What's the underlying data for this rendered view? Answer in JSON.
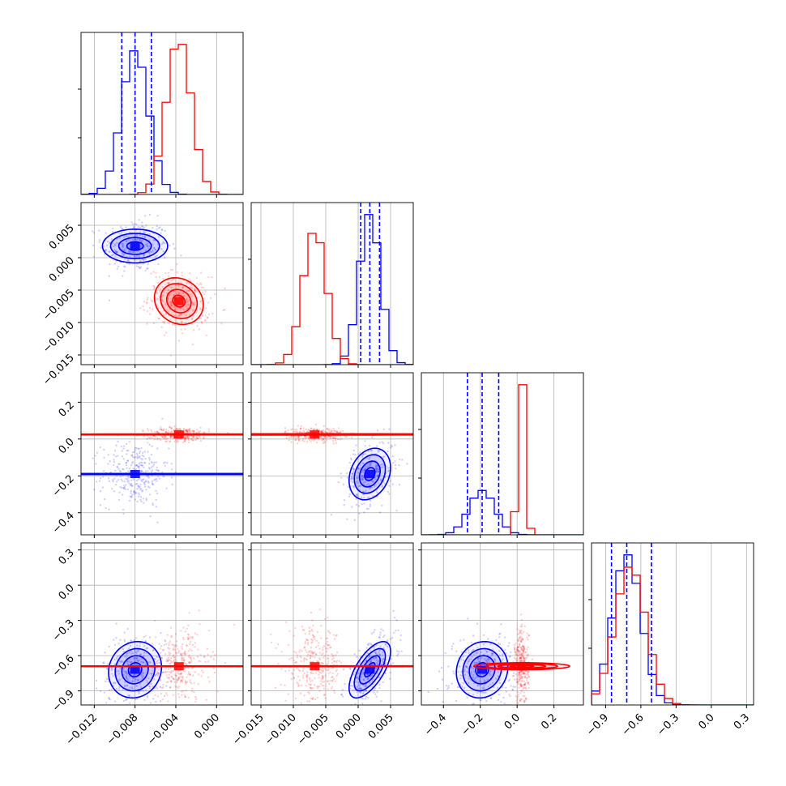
{
  "figure": {
    "type": "corner-plot"
  },
  "chart_data": {
    "type": "corner",
    "parameters": 4,
    "colors": {
      "series_a": "#0000ff",
      "series_b": "#ff0000",
      "grid": "#b0b0b0"
    },
    "grid": true,
    "series": [
      {
        "color": "#0000ff",
        "means": [
          -0.008,
          0.0018,
          -0.19,
          -0.72
        ],
        "sds": [
          0.0013,
          0.0016,
          0.07,
          0.12
        ],
        "corr": {
          "3-0": 0.1,
          "3-1": 0.65,
          "3-2": 0.1,
          "2-1": 0.25,
          "2-0": 0.0,
          "1-0": 0.0
        },
        "quantiles": [
          [
            -0.0093,
            -0.008,
            -0.0064
          ],
          [
            0.0004,
            0.0018,
            0.0033
          ],
          [
            -0.27,
            -0.19,
            -0.1
          ],
          [
            -0.85,
            -0.72,
            -0.51
          ]
        ]
      },
      {
        "color": "#ff0000",
        "means": [
          -0.0037,
          -0.0067,
          0.025,
          -0.69
        ],
        "sds": [
          0.0012,
          0.0018,
          0.015,
          0.13
        ],
        "corr": {
          "3-0": 0.0,
          "3-1": 0.0,
          "3-2": 0.0,
          "2-1": 0.0,
          "2-0": 0.0,
          "1-0": -0.15
        },
        "quantiles": null
      }
    ],
    "x_axes": [
      {
        "min": -0.0133,
        "max": 0.0026,
        "ticks": [
          -0.012,
          -0.008,
          -0.004,
          0.0
        ],
        "labels": [
          "−0.012",
          "−0.008",
          "−0.004",
          "0.000"
        ]
      },
      {
        "min": -0.0165,
        "max": 0.0085,
        "ticks": [
          -0.015,
          -0.01,
          -0.005,
          0.0,
          0.005
        ],
        "labels": [
          "−0.015",
          "−0.010",
          "−0.005",
          "0.000",
          "0.005"
        ]
      },
      {
        "min": -0.52,
        "max": 0.36,
        "ticks": [
          -0.4,
          -0.2,
          0.0,
          0.2
        ],
        "labels": [
          "−0.4",
          "−0.2",
          "0.0",
          "0.2"
        ]
      },
      {
        "min": -1.02,
        "max": 0.36,
        "ticks": [
          -0.9,
          -0.6,
          -0.3,
          0.0,
          0.3
        ],
        "labels": [
          "−0.9",
          "−0.6",
          "−0.3",
          "0.0",
          "0.3"
        ]
      }
    ],
    "y_axes": [
      null,
      {
        "min": -0.0165,
        "max": 0.0085,
        "ticks": [
          -0.015,
          -0.01,
          -0.005,
          0.0,
          0.005
        ],
        "labels": [
          "−0.015",
          "−0.010",
          "−0.005",
          "0.000",
          "0.005"
        ]
      },
      {
        "min": -0.52,
        "max": 0.36,
        "ticks": [
          -0.4,
          -0.2,
          0.0,
          0.2
        ],
        "labels": [
          "−0.4",
          "−0.2",
          "0.0",
          "0.2"
        ]
      },
      {
        "min": -1.02,
        "max": 0.36,
        "ticks": [
          -0.9,
          -0.6,
          -0.3,
          0.0,
          0.3
        ],
        "labels": [
          "−0.9",
          "−0.6",
          "−0.3",
          "0.0",
          "0.3"
        ]
      }
    ]
  }
}
